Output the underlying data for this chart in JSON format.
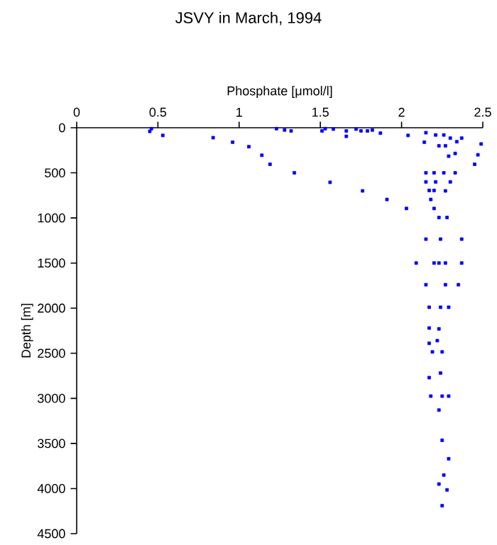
{
  "chart_data": {
    "type": "scatter",
    "title": "JSVY in March, 1994",
    "xlabel": "Phosphate [μmol/l]",
    "ylabel": "Depth [m]",
    "x": [
      0.45,
      0.46,
      0.53,
      0.84,
      0.96,
      1.06,
      1.14,
      1.19,
      1.34,
      1.56,
      1.76,
      1.91,
      2.03,
      1.23,
      1.28,
      1.32,
      1.51,
      1.53,
      1.58,
      1.66,
      1.66,
      1.72,
      1.75,
      1.79,
      1.82,
      1.87,
      2.04,
      2.15,
      2.14,
      2.21,
      2.26,
      2.23,
      2.27,
      2.3,
      2.34,
      2.37,
      2.33,
      2.29,
      2.49,
      2.47,
      2.45,
      2.15,
      2.2,
      2.26,
      2.33,
      2.15,
      2.21,
      2.3,
      2.17,
      2.2,
      2.27,
      2.18,
      2.2,
      2.23,
      2.28,
      2.15,
      2.24,
      2.37,
      2.09,
      2.2,
      2.23,
      2.27,
      2.37,
      2.15,
      2.27,
      2.35,
      2.17,
      2.24,
      2.29,
      2.17,
      2.23,
      2.22,
      2.17,
      2.19,
      2.25,
      2.24,
      2.17,
      2.18,
      2.25,
      2.29,
      2.23,
      2.25,
      2.29,
      2.26,
      2.23,
      2.28,
      2.25
    ],
    "values": [
      40,
      10,
      85,
      110,
      160,
      210,
      305,
      405,
      500,
      605,
      700,
      795,
      895,
      10,
      25,
      35,
      35,
      10,
      15,
      35,
      95,
      15,
      35,
      35,
      25,
      60,
      85,
      55,
      160,
      80,
      80,
      200,
      200,
      115,
      155,
      115,
      285,
      315,
      180,
      300,
      405,
      500,
      500,
      500,
      500,
      600,
      600,
      600,
      695,
      695,
      700,
      795,
      895,
      995,
      995,
      1235,
      1235,
      1235,
      1500,
      1500,
      1500,
      1500,
      1500,
      1740,
      1740,
      1740,
      1990,
      1990,
      1990,
      2220,
      2230,
      2360,
      2390,
      2485,
      2485,
      2720,
      2770,
      2975,
      2975,
      2975,
      3130,
      3465,
      3670,
      3850,
      3950,
      4015,
      4190
    ],
    "color": "#0000ff",
    "marker": "square",
    "xlim": [
      0,
      2.5
    ],
    "xticks": [
      0,
      0.5,
      1,
      1.5,
      2,
      2.5
    ],
    "ylim": [
      4500,
      0
    ],
    "yticks": [
      0,
      500,
      1000,
      1500,
      2000,
      2500,
      3000,
      3500,
      4000,
      4500
    ],
    "grid": false
  }
}
